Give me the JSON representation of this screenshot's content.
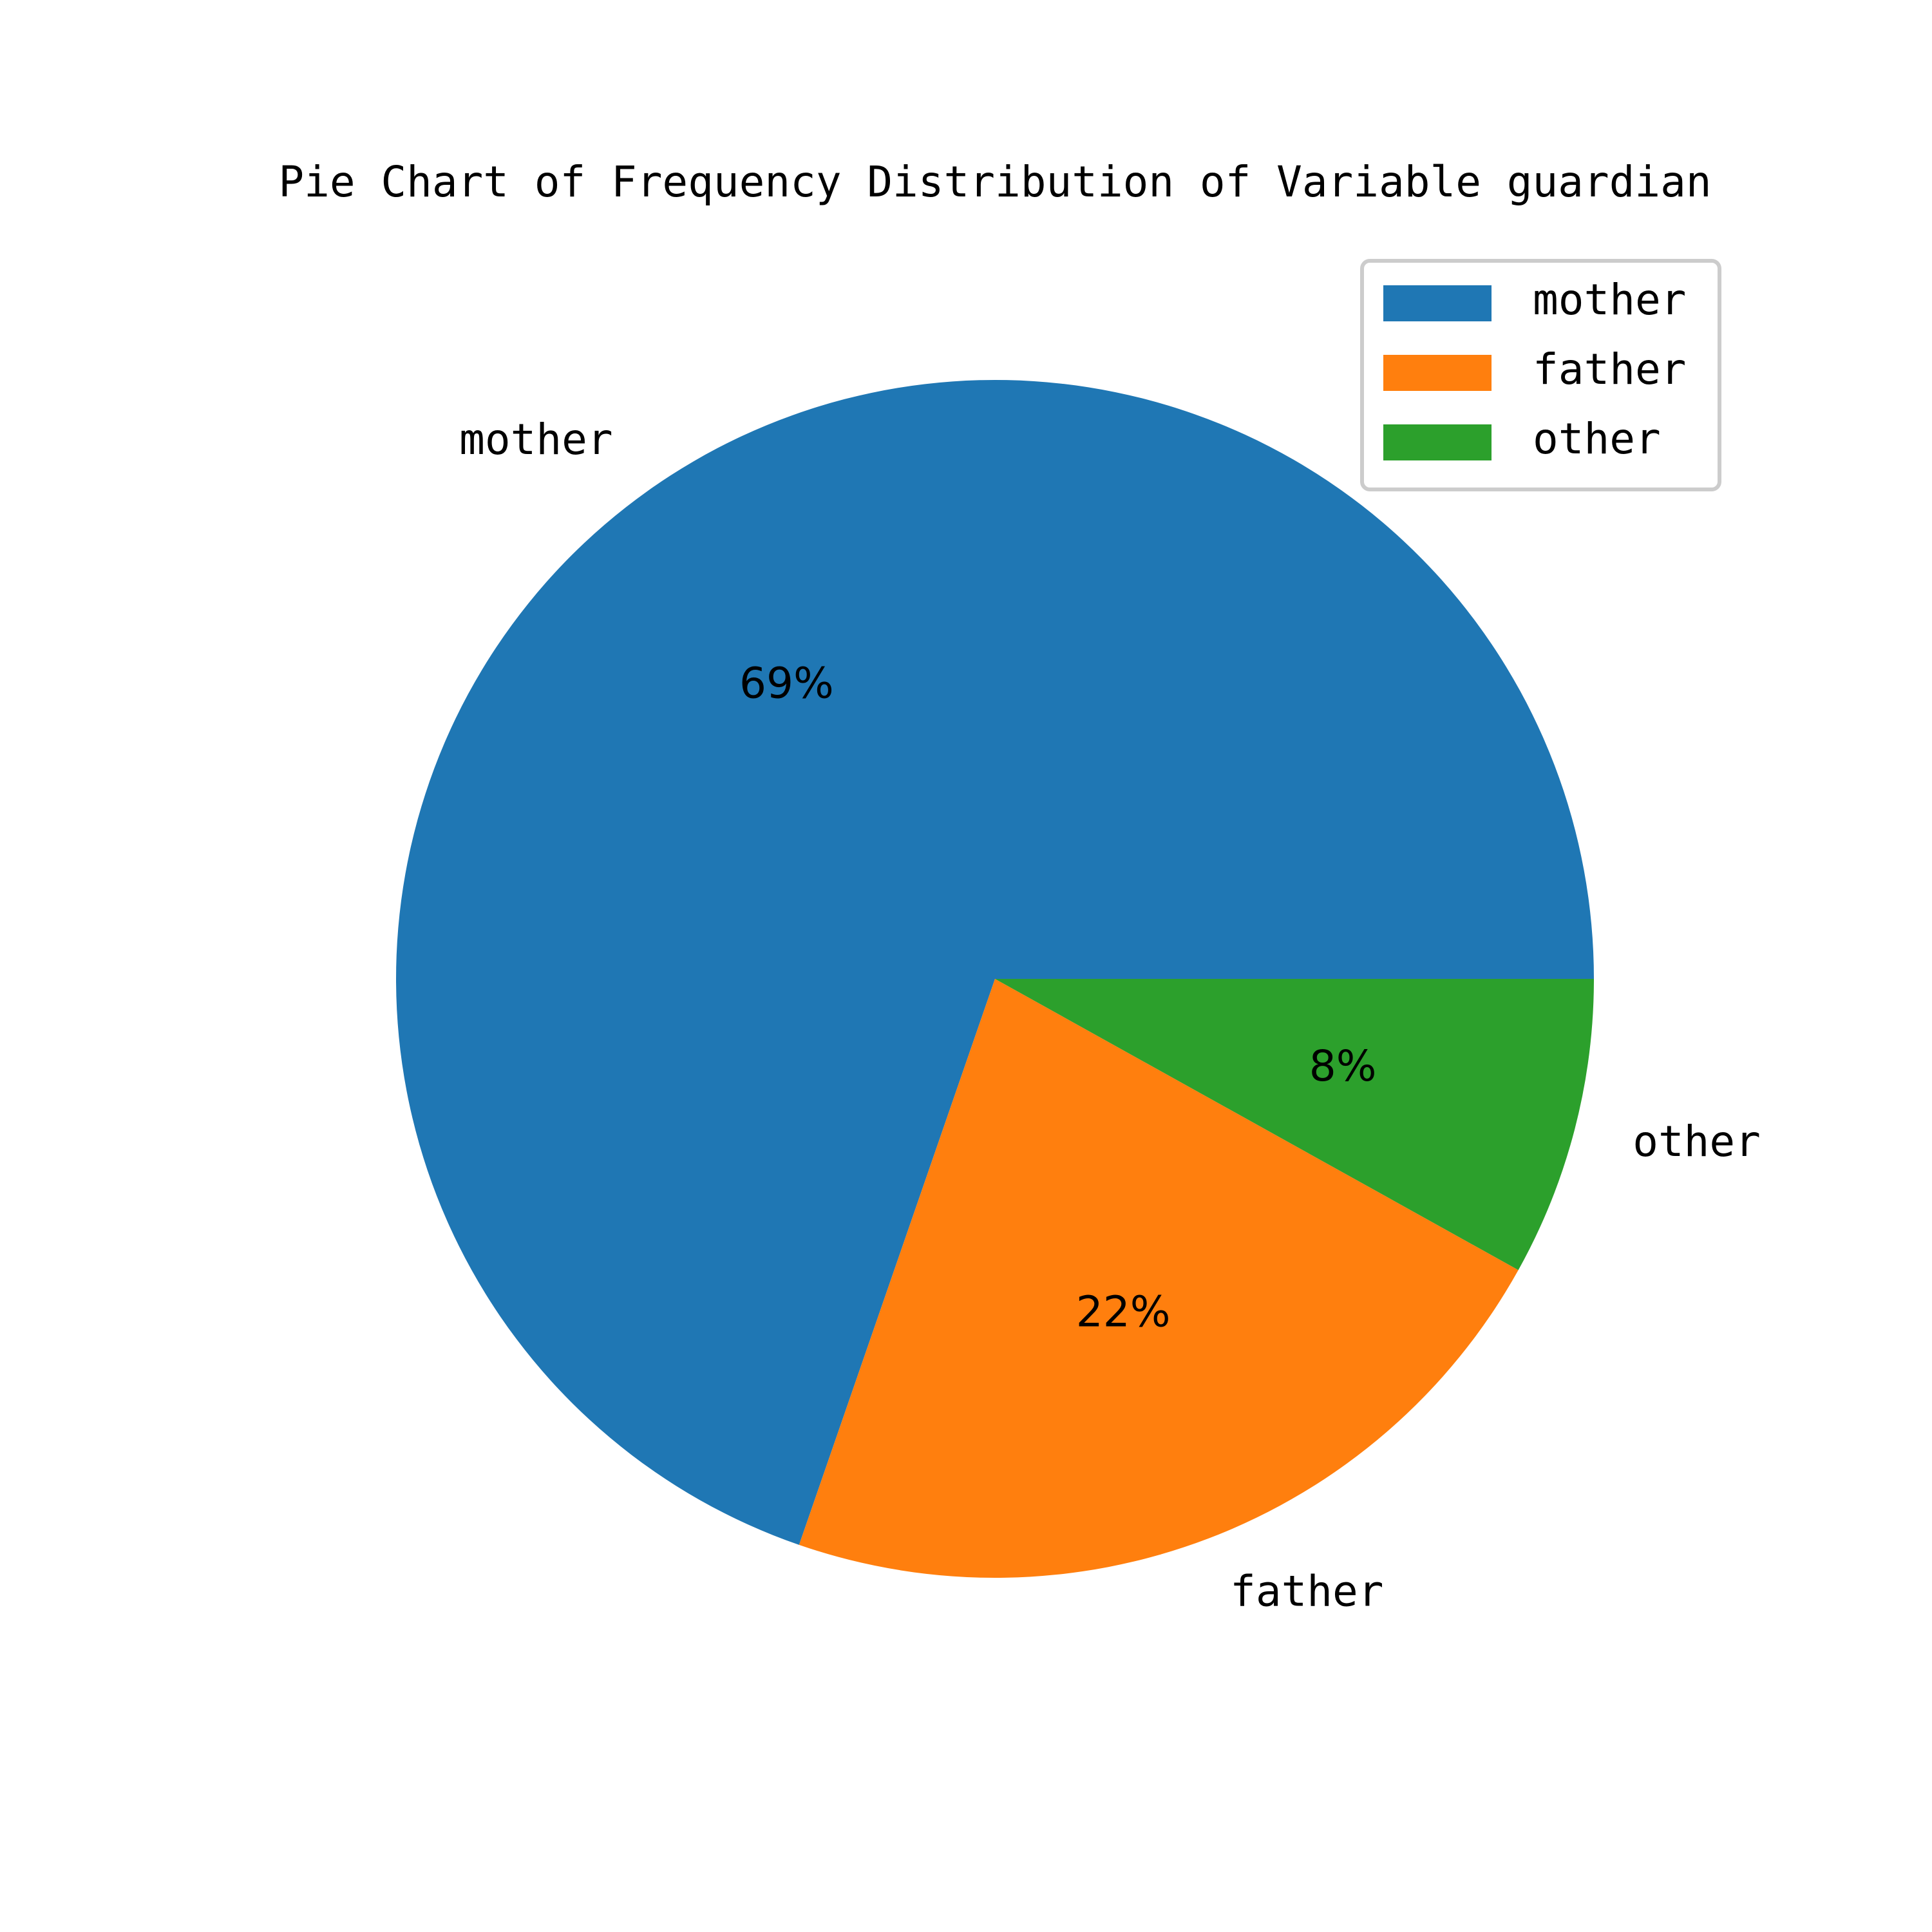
{
  "chart_data": {
    "type": "pie",
    "title": "Pie Chart of Frequency Distribution of Variable guardian",
    "categories": [
      "mother",
      "father",
      "other"
    ],
    "values": [
      69,
      22,
      8
    ],
    "value_labels": [
      "69%",
      "22%",
      "8%"
    ],
    "colors": [
      "#1f77b4",
      "#ff7f0e",
      "#2ca02c"
    ],
    "legend": {
      "placement": "top-right",
      "entries": [
        "mother",
        "father",
        "other"
      ]
    }
  }
}
